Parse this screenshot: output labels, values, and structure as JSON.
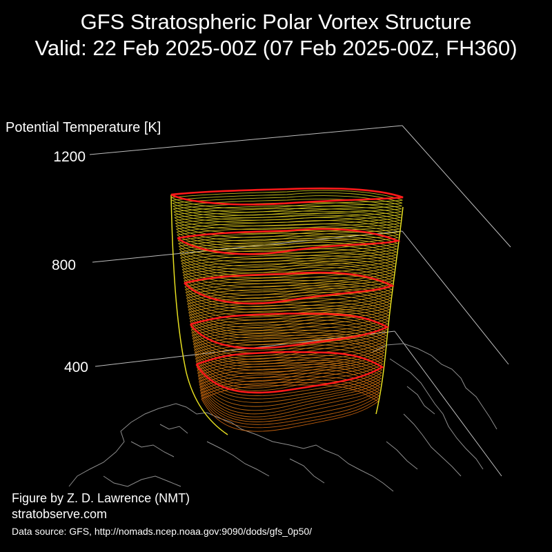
{
  "header": {
    "title_line1": "GFS Stratospheric Polar Vortex Structure",
    "title_line2": "Valid: 22 Feb 2025-00Z  (07 Feb 2025-00Z, FH360)"
  },
  "axis": {
    "title": "Potential Temperature [K]",
    "ticks": [
      "1200",
      "800",
      "400"
    ]
  },
  "footer": {
    "credit": "Figure by Z. D. Lawrence (NMT)",
    "site": "stratobserve.com",
    "source": "Data source: GFS, http://nomads.ncep.noaa.gov:9090/dods/gfs_0p50/"
  },
  "colors": {
    "background": "#000000",
    "highlight_contour": "#ff1a1a",
    "top_layers": "#e8e020",
    "bottom_layers": "#e07010",
    "coastline": "#9a9a9a",
    "axis_lines": "#bfbfbf"
  }
}
